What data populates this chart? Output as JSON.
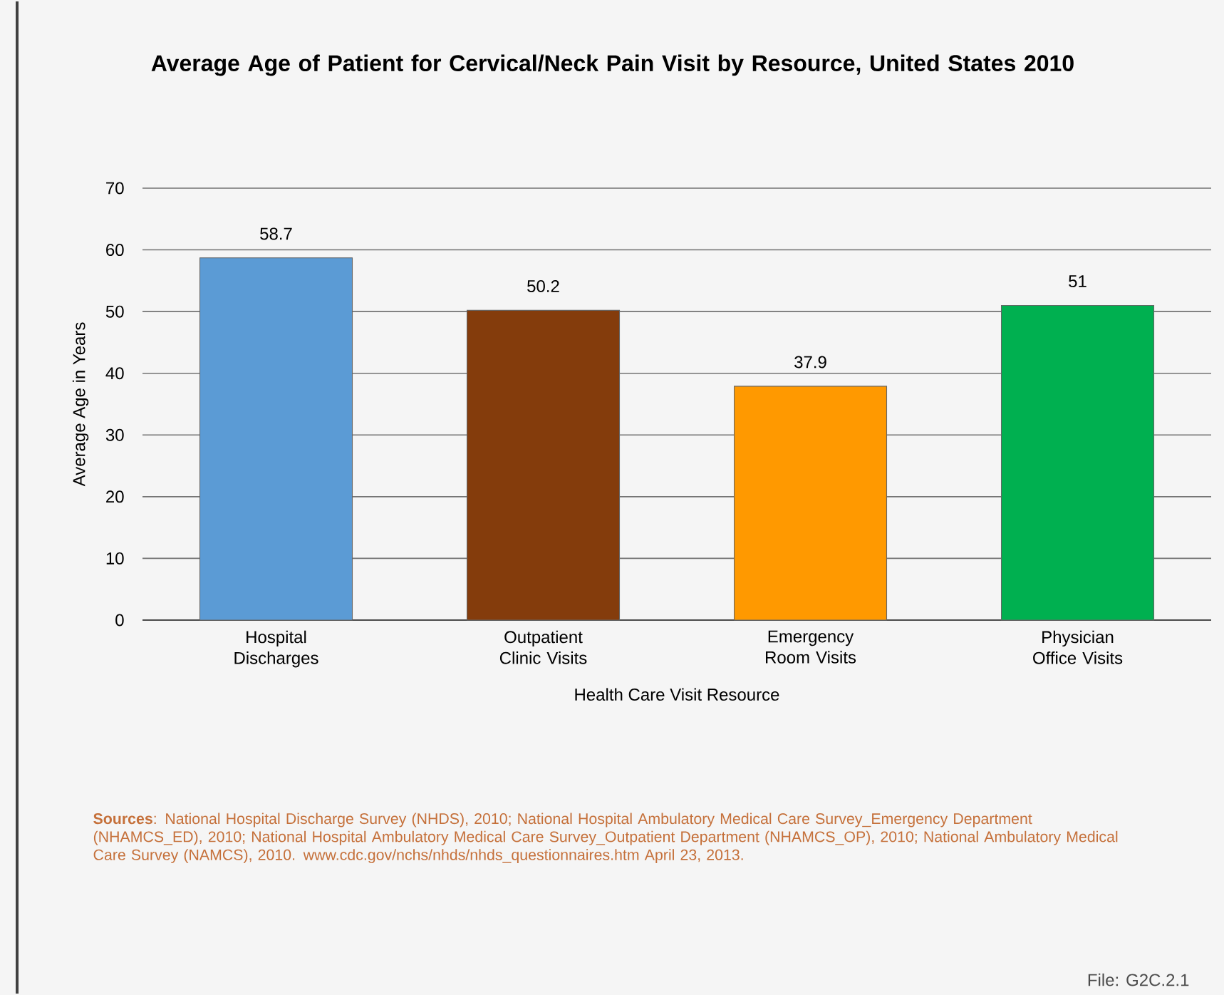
{
  "chart_data": {
    "type": "bar",
    "title": "Average Age of Patient for Cervical/Neck Pain Visit by Resource, United States 2010",
    "xlabel": "Health Care Visit Resource",
    "ylabel": "Average Age in Years",
    "categories": [
      "Hospital Discharges",
      "Outpatient Clinic Visits",
      "Emergency Room Visits",
      "Physician Office Visits"
    ],
    "values": [
      58.7,
      50.2,
      37.9,
      51
    ],
    "colors": [
      "#5b9bd5",
      "#843c0c",
      "#ff9900",
      "#00b050"
    ],
    "ylim": [
      0,
      70
    ],
    "yticks": [
      0,
      10,
      20,
      30,
      40,
      50,
      60,
      70
    ],
    "grid": "y",
    "data_labels": true,
    "annotations": [
      "**Sources**: National Hospital Discharge Survey (NHDS), 2010; National Hospital Ambulatory Medical Care Survey_Emergency Department (NHAMCS_ED), 2010; National Hospital Ambulatory Medical Care Survey_Outpatient Department (NHAMCS_OP), 2010; National Ambulatory Medical Care Survey (NAMCS), 2010. www.cdc.gov/nchs/nhds/nhds_questionnaires.htm April 23, 2013.",
      "File: G2C.2.1"
    ]
  }
}
